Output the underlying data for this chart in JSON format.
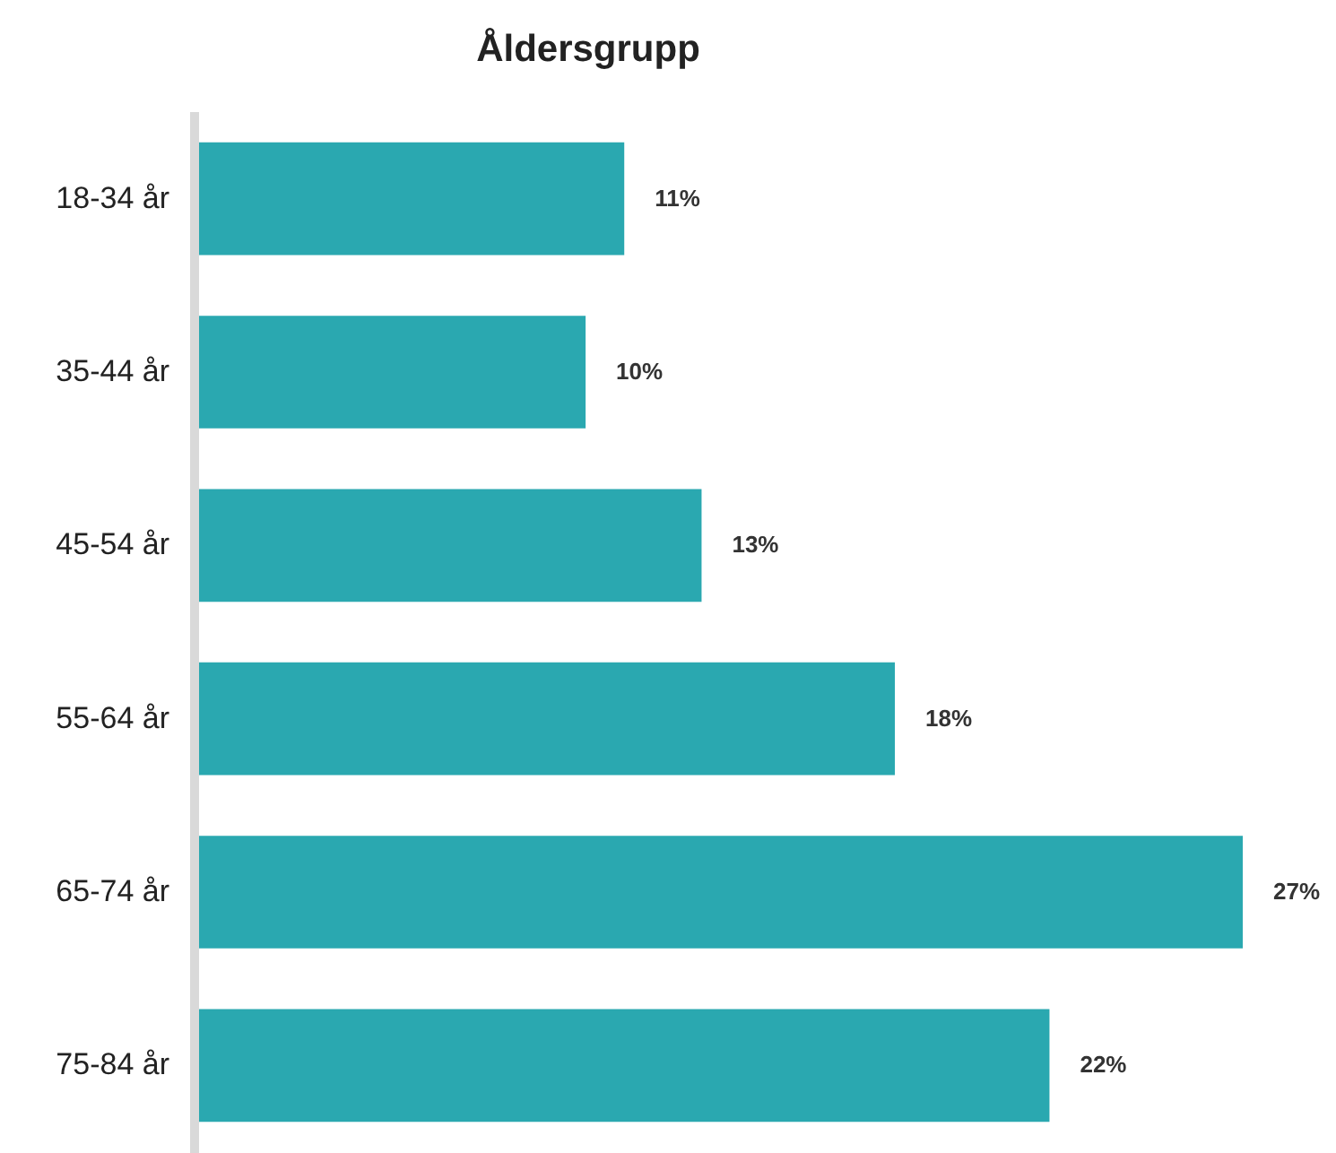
{
  "chart_data": {
    "type": "bar",
    "orientation": "horizontal",
    "title": "Åldersgrupp",
    "categories": [
      "18-34 år",
      "35-44 år",
      "45-54 år",
      "55-64 år",
      "65-74 år",
      "75-84 år"
    ],
    "values": [
      11,
      10,
      13,
      18,
      27,
      22
    ],
    "color": "#2aa8b0",
    "value_labels": [
      "11%",
      "10%",
      "13%",
      "18%",
      "27%",
      "22%"
    ]
  }
}
